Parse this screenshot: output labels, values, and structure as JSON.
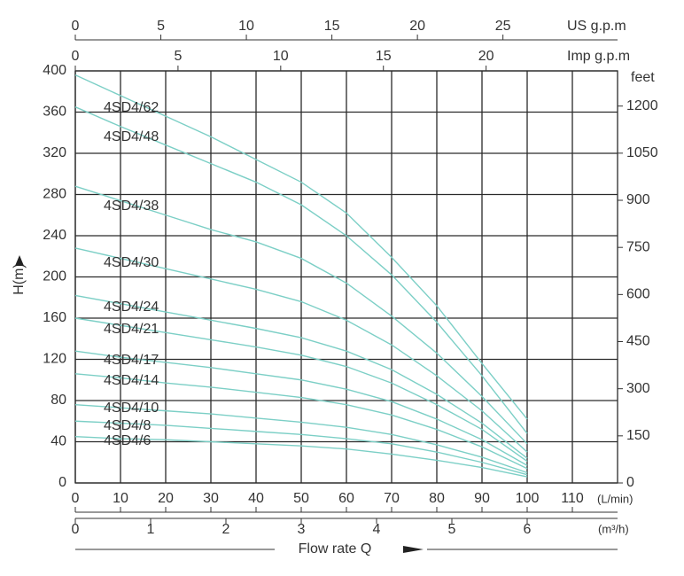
{
  "chart_data": {
    "type": "line",
    "y_label": "H(m)",
    "y2_label": "feet",
    "x_label": "Flow rate Q",
    "x_unit": "(L/min)",
    "x": [
      0,
      10,
      20,
      30,
      40,
      50,
      60,
      70,
      80,
      90,
      100
    ],
    "xlim": [
      0,
      120
    ],
    "xticks": [
      0,
      10,
      20,
      30,
      40,
      50,
      60,
      70,
      80,
      90,
      100,
      110
    ],
    "ylim": [
      0,
      400
    ],
    "yticks": [
      0,
      40,
      80,
      120,
      160,
      200,
      240,
      280,
      320,
      360,
      400
    ],
    "y2lim": [
      0,
      1312
    ],
    "y2ticks": [
      0,
      150,
      300,
      450,
      600,
      750,
      900,
      1050,
      1200
    ],
    "secondary_x_axes": [
      {
        "label": "(m³/h)",
        "lim": [
          0,
          7.2
        ],
        "ticks": [
          0,
          1,
          2,
          3,
          4,
          5,
          6
        ]
      },
      {
        "label": "US g.p.m",
        "lim": [
          0,
          31.7
        ],
        "ticks": [
          0,
          5,
          10,
          15,
          20,
          25
        ]
      },
      {
        "label": "Imp g.p.m",
        "lim": [
          0,
          26.4
        ],
        "ticks": [
          0,
          5,
          10,
          15,
          20
        ]
      }
    ],
    "grid": true,
    "color": "#7ccfc6",
    "series": [
      {
        "name": "4SD4/62",
        "values": [
          396,
          376,
          356,
          336,
          314,
          292,
          262,
          219,
          172,
          116,
          62
        ]
      },
      {
        "name": "4SD4/48",
        "values": [
          365,
          346,
          328,
          310,
          292,
          270,
          240,
          202,
          156,
          104,
          48
        ]
      },
      {
        "name": "4SD4/38",
        "values": [
          288,
          274,
          260,
          246,
          234,
          218,
          194,
          162,
          126,
          84,
          38
        ]
      },
      {
        "name": "4SD4/30",
        "values": [
          228,
          218,
          208,
          198,
          188,
          176,
          158,
          134,
          104,
          70,
          30
        ]
      },
      {
        "name": "4SD4/24",
        "values": [
          182,
          174,
          166,
          158,
          150,
          141,
          128,
          110,
          86,
          58,
          24
        ]
      },
      {
        "name": "4SD4/21",
        "values": [
          160,
          153,
          146,
          139,
          132,
          124,
          113,
          97,
          76,
          52,
          21
        ]
      },
      {
        "name": "4SD4/17",
        "values": [
          128,
          122,
          117,
          112,
          106,
          100,
          91,
          79,
          62,
          42,
          17
        ]
      },
      {
        "name": "4SD4/14",
        "values": [
          106,
          102,
          97,
          93,
          88,
          83,
          76,
          66,
          52,
          35,
          14
        ]
      },
      {
        "name": "4SD4/10",
        "values": [
          76,
          73,
          70,
          67,
          63,
          59,
          54,
          47,
          37,
          25,
          10
        ]
      },
      {
        "name": "4SD4/8",
        "values": [
          60,
          58,
          56,
          53,
          50,
          47,
          43,
          38,
          30,
          20,
          8
        ]
      },
      {
        "name": "4SD4/6",
        "values": [
          45,
          43,
          42,
          40,
          38,
          36,
          33,
          28,
          22,
          15,
          6
        ]
      }
    ]
  }
}
